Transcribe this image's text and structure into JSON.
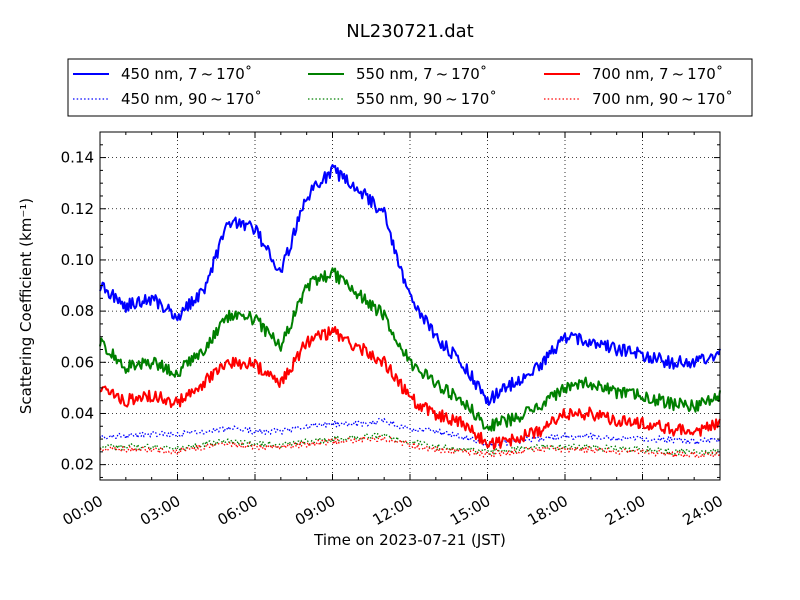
{
  "chart_data": {
    "type": "line",
    "title": "NL230721.dat",
    "xlabel": "Time on 2023-07-21 (JST)",
    "ylabel": "Scattering Coefficient (km⁻¹)",
    "xlim": [
      "00:00",
      "24:00"
    ],
    "ylim": [
      0.014,
      0.15
    ],
    "grid": true,
    "legend_position": "top",
    "x_ticks": [
      "00:00",
      "03:00",
      "06:00",
      "09:00",
      "12:00",
      "15:00",
      "18:00",
      "21:00",
      "24:00"
    ],
    "y_ticks": [
      "0.02",
      "0.04",
      "0.06",
      "0.08",
      "0.10",
      "0.12",
      "0.14"
    ],
    "x": [
      "00:00",
      "01:00",
      "02:00",
      "03:00",
      "04:00",
      "05:00",
      "06:00",
      "07:00",
      "08:00",
      "09:00",
      "10:00",
      "11:00",
      "12:00",
      "13:00",
      "14:00",
      "15:00",
      "16:00",
      "17:00",
      "18:00",
      "19:00",
      "20:00",
      "21:00",
      "22:00",
      "23:00",
      "24:00"
    ],
    "series": [
      {
        "name": "450 nm, 7 ~ 170˚",
        "color": "#0000ff",
        "style": "solid",
        "values": [
          0.09,
          0.082,
          0.085,
          0.078,
          0.088,
          0.115,
          0.112,
          0.095,
          0.125,
          0.135,
          0.128,
          0.118,
          0.085,
          0.07,
          0.06,
          0.045,
          0.052,
          0.058,
          0.07,
          0.068,
          0.065,
          0.063,
          0.06,
          0.06,
          0.063
        ]
      },
      {
        "name": "550 nm, 7 ~ 170˚",
        "color": "#008000",
        "style": "solid",
        "values": [
          0.068,
          0.058,
          0.06,
          0.056,
          0.065,
          0.078,
          0.077,
          0.066,
          0.09,
          0.095,
          0.087,
          0.078,
          0.06,
          0.052,
          0.045,
          0.035,
          0.038,
          0.042,
          0.05,
          0.052,
          0.048,
          0.047,
          0.044,
          0.043,
          0.047
        ]
      },
      {
        "name": "700 nm, 7 ~ 170˚",
        "color": "#ff0000",
        "style": "solid",
        "values": [
          0.05,
          0.045,
          0.047,
          0.044,
          0.052,
          0.06,
          0.059,
          0.052,
          0.068,
          0.072,
          0.066,
          0.06,
          0.046,
          0.04,
          0.036,
          0.028,
          0.03,
          0.033,
          0.04,
          0.04,
          0.037,
          0.036,
          0.034,
          0.033,
          0.036
        ]
      },
      {
        "name": "450 nm, 90 ~ 170˚",
        "color": "#0000ff",
        "style": "dotted",
        "values": [
          0.031,
          0.031,
          0.032,
          0.032,
          0.033,
          0.034,
          0.033,
          0.033,
          0.035,
          0.036,
          0.036,
          0.037,
          0.034,
          0.033,
          0.031,
          0.028,
          0.029,
          0.03,
          0.031,
          0.031,
          0.03,
          0.03,
          0.03,
          0.029,
          0.03
        ]
      },
      {
        "name": "550 nm, 90 ~ 170˚",
        "color": "#008000",
        "style": "dotted",
        "values": [
          0.027,
          0.027,
          0.027,
          0.026,
          0.028,
          0.029,
          0.028,
          0.028,
          0.029,
          0.03,
          0.031,
          0.031,
          0.029,
          0.027,
          0.026,
          0.025,
          0.026,
          0.027,
          0.027,
          0.027,
          0.026,
          0.026,
          0.025,
          0.025,
          0.025
        ]
      },
      {
        "name": "700 nm, 90 ~ 170˚",
        "color": "#ff0000",
        "style": "dotted",
        "values": [
          0.026,
          0.026,
          0.026,
          0.025,
          0.027,
          0.028,
          0.027,
          0.027,
          0.028,
          0.029,
          0.03,
          0.03,
          0.028,
          0.026,
          0.025,
          0.024,
          0.025,
          0.026,
          0.026,
          0.026,
          0.025,
          0.025,
          0.024,
          0.024,
          0.024
        ]
      }
    ]
  }
}
